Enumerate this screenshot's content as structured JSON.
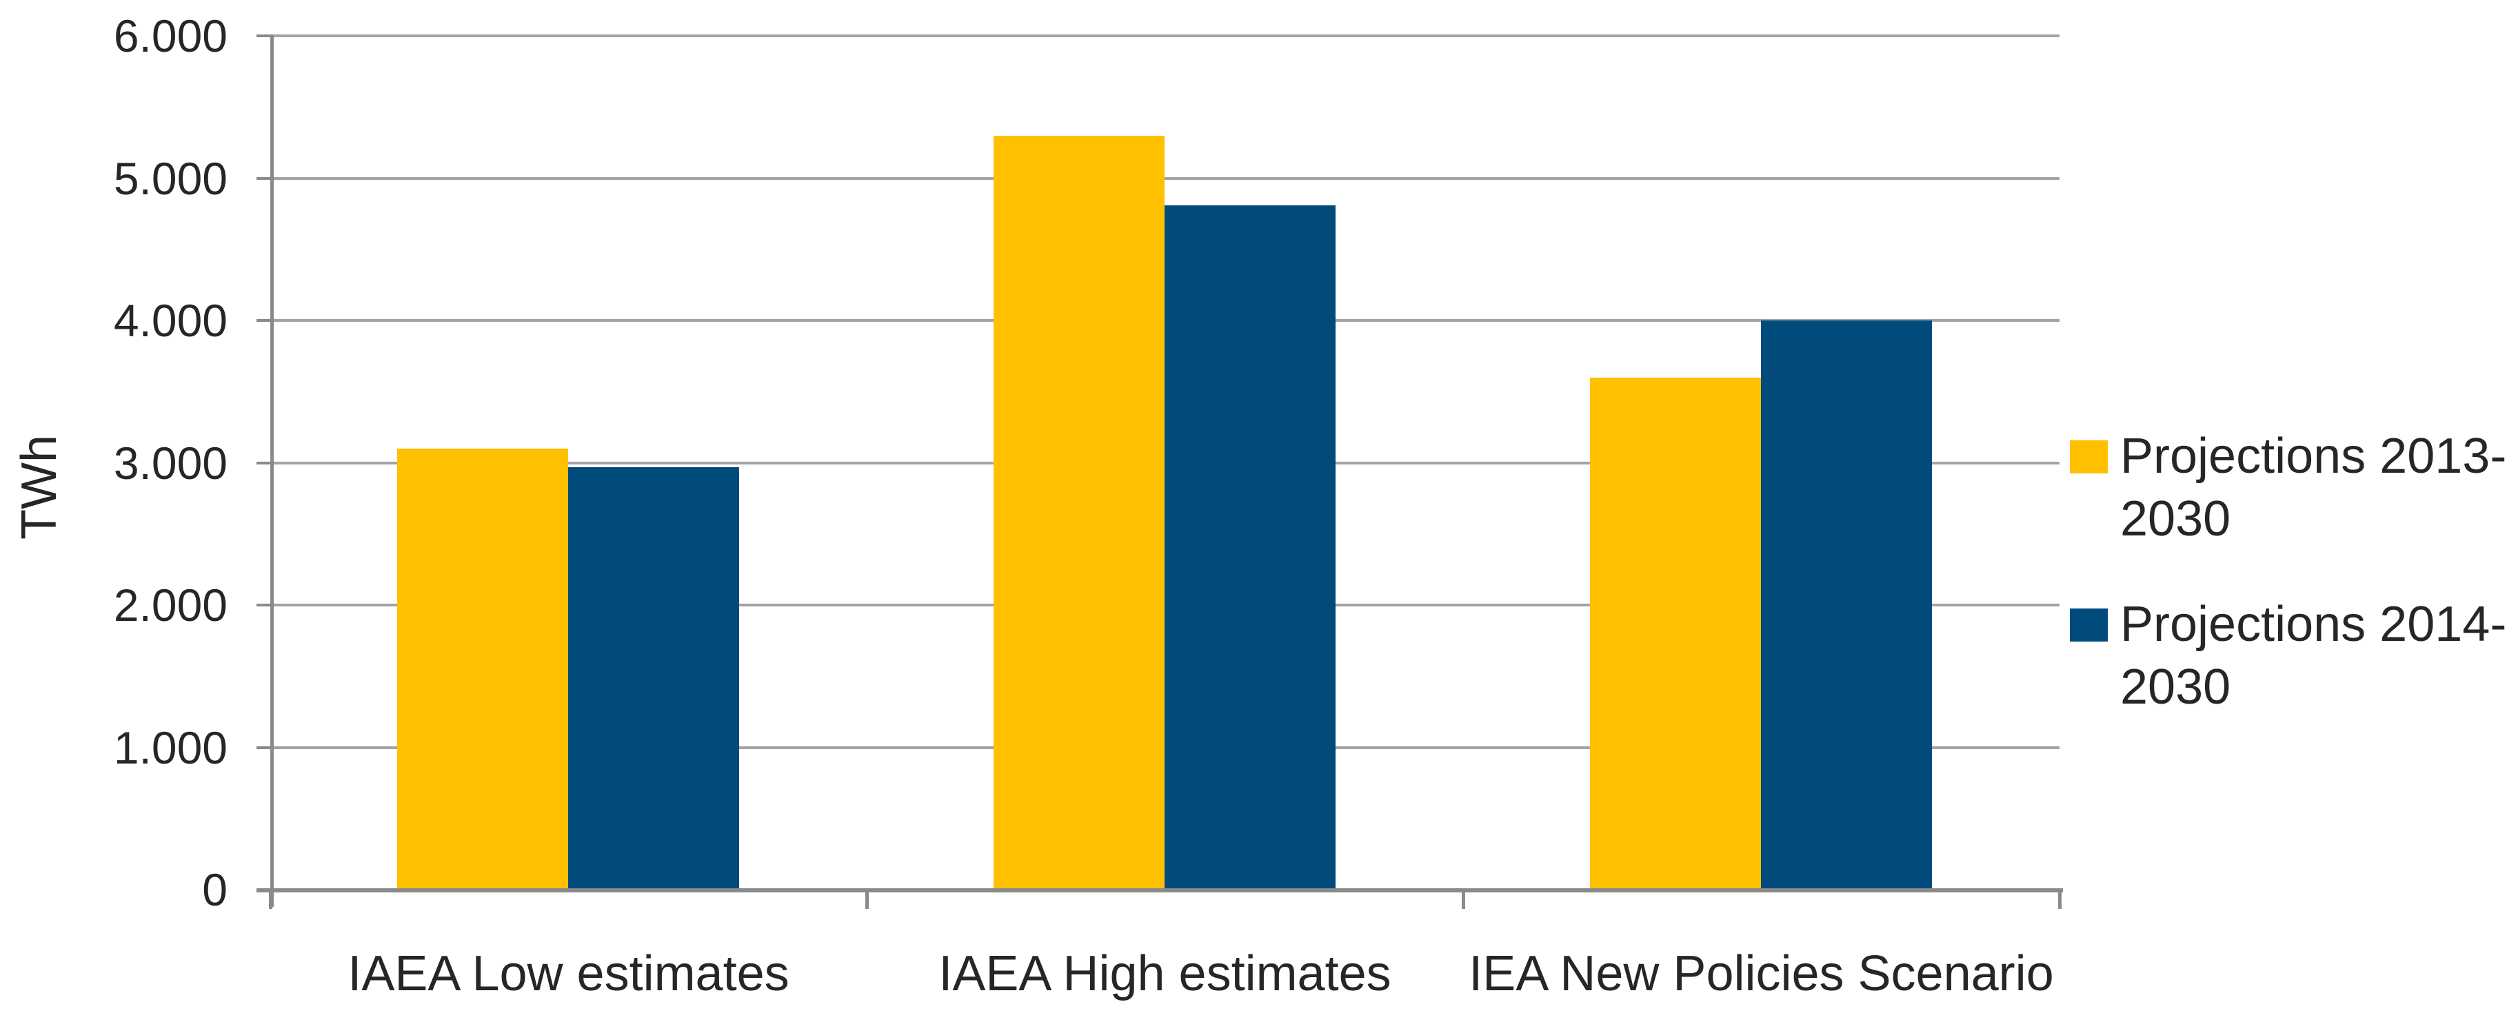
{
  "chart_data": {
    "type": "bar",
    "title": "",
    "ylabel": "TWh",
    "xlabel": "",
    "categories": [
      "IAEA Low estimates",
      "IAEA High estimates",
      "IEA New Policies Scenario"
    ],
    "series": [
      {
        "name": "Projections 2013-2030",
        "color": "#ffc000",
        "values": [
          3100,
          5300,
          3600
        ]
      },
      {
        "name": "Projections 2014-2030",
        "color": "#004a7c",
        "values": [
          2970,
          4810,
          4000
        ]
      }
    ],
    "ylim": [
      0,
      6000
    ],
    "y_ticks": [
      {
        "value": 0,
        "label": "0"
      },
      {
        "value": 1000,
        "label": "1.000"
      },
      {
        "value": 2000,
        "label": "2.000"
      },
      {
        "value": 3000,
        "label": "3.000"
      },
      {
        "value": 4000,
        "label": "4.000"
      },
      {
        "value": 5000,
        "label": "5.000"
      },
      {
        "value": 6000,
        "label": "6.000"
      }
    ],
    "grid": "horizontal",
    "legend_position": "right"
  },
  "colors": {
    "background": "#ffffff",
    "gridline": "#a3a3a3",
    "axis": "#8a8a8a",
    "text": "#262626",
    "series_2013": "#ffc000",
    "series_2014": "#004a7c"
  }
}
